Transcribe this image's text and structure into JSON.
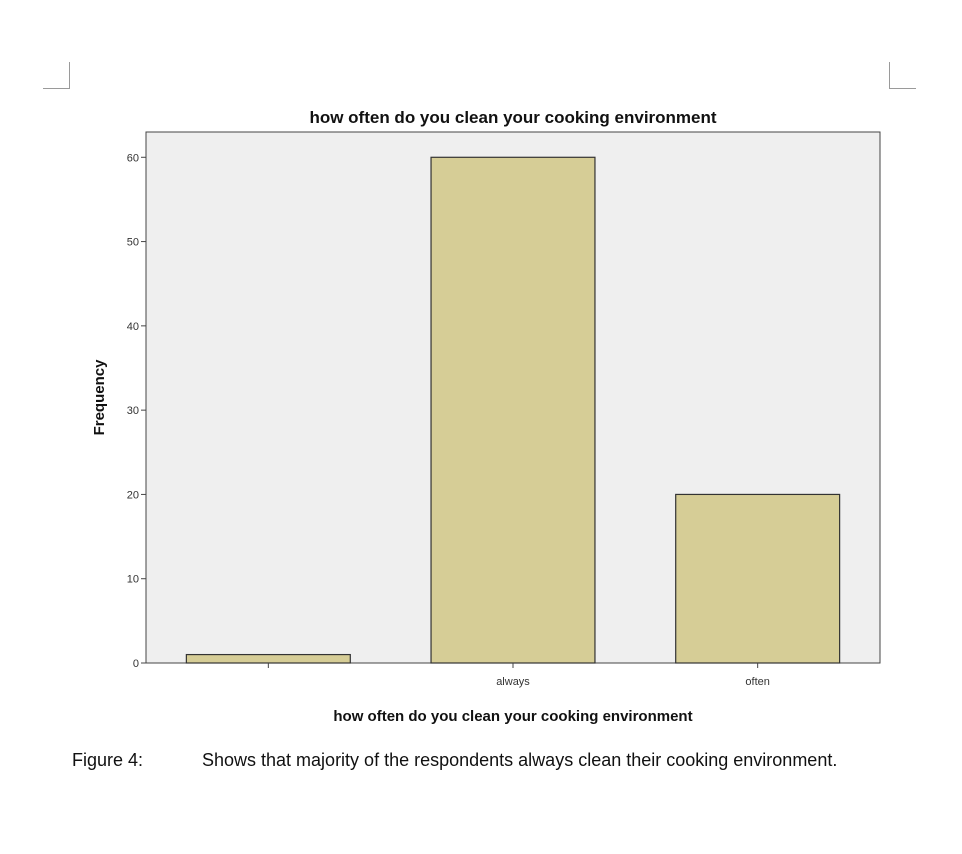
{
  "chart_data": {
    "type": "bar",
    "title": "how often do you clean your cooking environment",
    "xlabel": "how often do you clean your cooking environment",
    "ylabel": "Frequency",
    "categories": [
      "",
      "always",
      "often"
    ],
    "values": [
      1,
      60,
      20
    ],
    "ylim": [
      0,
      63
    ],
    "yticks": [
      0,
      10,
      20,
      30,
      40,
      50,
      60
    ],
    "grid": false,
    "colors": {
      "bar_fill": "#d6cd96",
      "bar_stroke": "#333333",
      "plot_background": "#efefef",
      "axis": "#444444"
    }
  },
  "caption": {
    "label": "Figure 4:",
    "text": "Shows that majority of the respondents always clean their cooking environment."
  }
}
